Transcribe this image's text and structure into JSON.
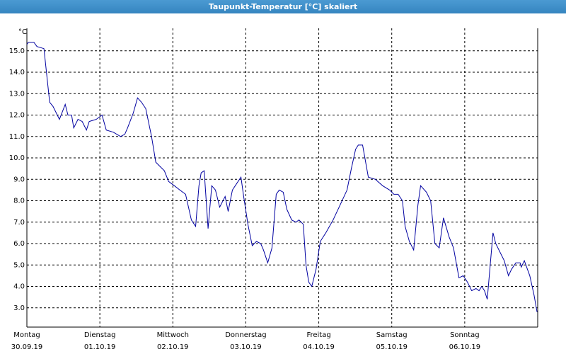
{
  "chart_data": {
    "type": "line",
    "title": "Taupunkt-Temperatur [°C] skaliert",
    "y_unit": "°C",
    "xlim": [
      0,
      168
    ],
    "ylim": [
      2.1,
      16.05
    ],
    "xticks": [
      {
        "value": 0,
        "label": "Montag"
      },
      {
        "value": 24,
        "label": "Dienstag"
      },
      {
        "value": 48,
        "label": "Mittwoch"
      },
      {
        "value": 72,
        "label": "Donnerstag"
      },
      {
        "value": 96,
        "label": "Freitag"
      },
      {
        "value": 120,
        "label": "Samstag"
      },
      {
        "value": 144,
        "label": "Sonntag"
      }
    ],
    "xtick_dates": [
      "30.09.19",
      "01.10.19",
      "02.10.19",
      "03.10.19",
      "04.10.19",
      "05.10.19",
      "06.10.19"
    ],
    "yticks": [
      {
        "value": 3,
        "label": "3.0"
      },
      {
        "value": 4,
        "label": "4.0"
      },
      {
        "value": 5,
        "label": "5.0"
      },
      {
        "value": 6,
        "label": "6.0"
      },
      {
        "value": 7,
        "label": "7.0"
      },
      {
        "value": 8,
        "label": "8.0"
      },
      {
        "value": 9,
        "label": "9.0"
      },
      {
        "value": 10,
        "label": "10.0"
      },
      {
        "value": 11,
        "label": "11.0"
      },
      {
        "value": 12,
        "label": "12.0"
      },
      {
        "value": 13,
        "label": "13.0"
      },
      {
        "value": 14,
        "label": "14.0"
      },
      {
        "value": 15,
        "label": "15.0"
      }
    ],
    "grid": true,
    "series": [
      {
        "color": "#0000a0",
        "x": [
          0,
          0.5,
          2.3,
          3.3,
          5.6,
          7.5,
          8.6,
          10.7,
          12.6,
          13.5,
          14.7,
          15.4,
          16.8,
          18.2,
          19.6,
          20.5,
          22.8,
          24.7,
          26.1,
          28.4,
          30.8,
          32.2,
          33.1,
          35.0,
          36.4,
          37.7,
          39.1,
          41.0,
          42.4,
          43.8,
          45.2,
          46.6,
          48.5,
          50.3,
          52.2,
          54.1,
          55.5,
          56.6,
          57.3,
          58.3,
          59.6,
          60.8,
          62.0,
          63.4,
          65.2,
          66.2,
          67.6,
          69.0,
          70.4,
          71.3,
          72.7,
          74.1,
          75.5,
          76.9,
          77.8,
          79.2,
          80.6,
          82.0,
          83.0,
          84.3,
          85.5,
          87.1,
          88.5,
          89.5,
          90.9,
          91.8,
          92.7,
          93.7,
          95.1,
          96.5,
          98.3,
          100.7,
          103.0,
          105.3,
          106.7,
          108.1,
          109.0,
          110.4,
          112.3,
          114.6,
          117.0,
          119.3,
          120.7,
          122.1,
          123.5,
          124.4,
          125.8,
          127.2,
          128.6,
          129.5,
          131.4,
          132.8,
          134.2,
          135.6,
          137.0,
          138.9,
          140.3,
          142.1,
          143.5,
          144.9,
          146.3,
          147.7,
          148.7,
          149.6,
          150.5,
          151.4,
          153.3,
          154.2,
          155.6,
          157.0,
          158.4,
          159.4,
          160.8,
          162.2,
          162.6,
          163.6,
          165.4,
          166.8,
          167.8
        ],
        "values": [
          15.3,
          15.4,
          15.4,
          15.2,
          15.1,
          12.6,
          12.4,
          11.8,
          12.5,
          12.0,
          12.0,
          11.4,
          11.8,
          11.7,
          11.3,
          11.7,
          11.8,
          12.0,
          11.3,
          11.2,
          11.0,
          11.1,
          11.4,
          12.1,
          12.8,
          12.6,
          12.3,
          11.0,
          9.8,
          9.6,
          9.4,
          8.9,
          8.7,
          8.5,
          8.3,
          7.1,
          6.8,
          8.7,
          9.3,
          9.4,
          6.7,
          8.7,
          8.5,
          7.7,
          8.2,
          7.5,
          8.5,
          8.8,
          9.1,
          8.2,
          6.9,
          5.9,
          6.1,
          6.0,
          5.7,
          5.1,
          5.8,
          8.3,
          8.5,
          8.4,
          7.6,
          7.1,
          7.0,
          7.1,
          6.9,
          5.0,
          4.2,
          4.0,
          4.8,
          6.1,
          6.5,
          7.1,
          7.8,
          8.5,
          9.5,
          10.4,
          10.6,
          10.6,
          9.1,
          9.0,
          8.7,
          8.5,
          8.3,
          8.3,
          8.0,
          6.8,
          6.1,
          5.7,
          7.8,
          8.7,
          8.4,
          8.0,
          6.0,
          5.8,
          7.2,
          6.3,
          5.8,
          4.4,
          4.5,
          4.2,
          3.8,
          3.9,
          3.8,
          4.0,
          3.8,
          3.4,
          6.5,
          6.0,
          5.6,
          5.2,
          4.5,
          4.8,
          5.1,
          5.1,
          4.9,
          5.2,
          4.5,
          3.6,
          2.8
        ]
      }
    ]
  }
}
